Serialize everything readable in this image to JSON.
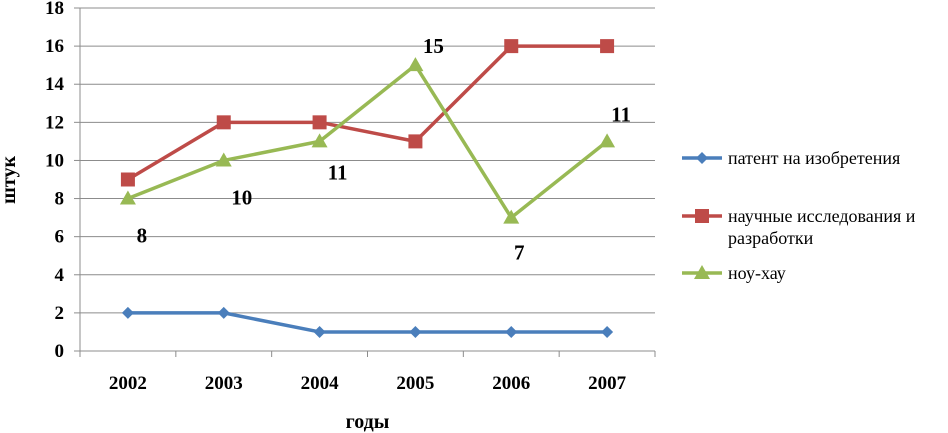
{
  "chart_data": {
    "type": "line",
    "xlabel": "годы",
    "ylabel": "штук",
    "ylim": [
      0,
      18
    ],
    "y_step": 2,
    "grid": "horizontal",
    "legend_position": "right",
    "categories": [
      "2002",
      "2003",
      "2004",
      "2005",
      "2006",
      "2007"
    ],
    "series": [
      {
        "name": "патент на изобретения",
        "values": [
          2,
          2,
          1,
          1,
          1,
          1
        ],
        "color": "#4a7ebb",
        "marker": "diamond"
      },
      {
        "name": "научные исследования и разработки",
        "values": [
          9,
          12,
          12,
          11,
          16,
          16
        ],
        "color": "#be4b48",
        "marker": "square"
      },
      {
        "name": "ноу-хау",
        "values": [
          8,
          10,
          11,
          15,
          7,
          11
        ],
        "color": "#98b954",
        "marker": "triangle"
      }
    ],
    "data_labels": [
      {
        "series": 2,
        "index": 0,
        "text": "8"
      },
      {
        "series": 2,
        "index": 1,
        "text": "10"
      },
      {
        "series": 2,
        "index": 2,
        "text": "11"
      },
      {
        "series": 2,
        "index": 3,
        "text": "15"
      },
      {
        "series": 2,
        "index": 4,
        "text": "7"
      },
      {
        "series": 2,
        "index": 5,
        "text": "11"
      }
    ]
  },
  "legend": {
    "items": [
      {
        "lines": [
          "патент на изобретения"
        ]
      },
      {
        "lines": [
          "научные исследования и",
          "разработки"
        ]
      },
      {
        "lines": [
          "ноу-хау"
        ]
      }
    ]
  }
}
